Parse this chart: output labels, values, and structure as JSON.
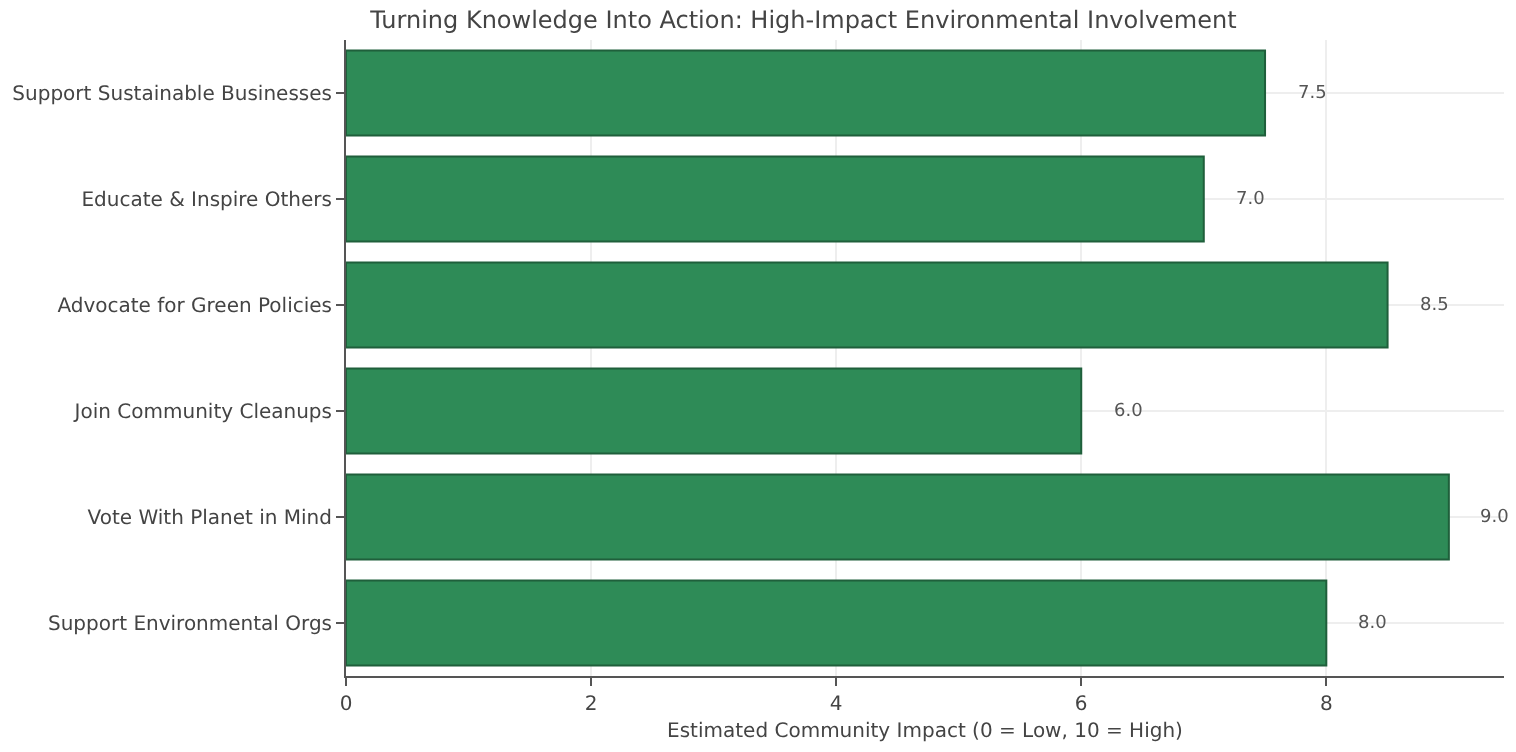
{
  "chart_data": {
    "type": "bar",
    "orientation": "horizontal",
    "title": "Turning Knowledge Into Action: High-Impact Environmental Involvement",
    "xlabel": "Estimated Community Impact (0 = Low, 10 = High)",
    "categories": [
      "Support Sustainable Businesses",
      "Educate & Inspire Others",
      "Advocate for Green Policies",
      "Join Community Cleanups",
      "Vote With Planet in Mind",
      "Support Environmental Orgs"
    ],
    "values": [
      7.5,
      7,
      8.5,
      6,
      9,
      8
    ],
    "value_labels": [
      "7.5",
      "7.0",
      "8.5",
      "6.0",
      "9.0",
      "8.0"
    ],
    "color": "#2e8b57",
    "xlim": [
      0,
      9.45
    ],
    "xticks": [
      0,
      2,
      4,
      6,
      8
    ],
    "grid": true
  }
}
